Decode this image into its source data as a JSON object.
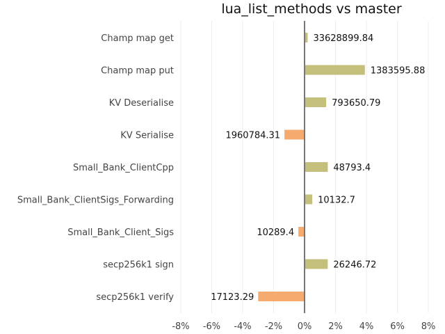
{
  "chart_data": {
    "type": "bar",
    "orientation": "horizontal",
    "title": "lua_list_methods vs master",
    "xlabel": "",
    "ylabel": "",
    "xlim": [
      -8,
      8
    ],
    "x_tick_values": [
      -8,
      -6,
      -4,
      -2,
      0,
      2,
      4,
      6,
      8
    ],
    "x_tick_labels": [
      "-8%",
      "-6%",
      "-4%",
      "-2%",
      "0%",
      "2%",
      "4%",
      "6%",
      "8%"
    ],
    "grid": true,
    "legend": "none",
    "colors": {
      "positive": "#c5bf7c",
      "negative": "#f5ab6f",
      "zero_line": "#777777"
    },
    "categories": [
      "Champ map get",
      "Champ map put",
      "KV Deserialise",
      "KV Serialise",
      "Small_Bank_ClientCpp",
      "Small_Bank_ClientSigs_Forwarding",
      "Small_Bank_Client_Sigs",
      "secp256k1 sign",
      "secp256k1 verify"
    ],
    "values": [
      0.2,
      3.9,
      1.4,
      -1.3,
      1.5,
      0.5,
      -0.4,
      1.5,
      -3.0
    ],
    "data_labels": [
      "33628899.84",
      "1383595.88",
      "793650.79",
      "1960784.31",
      "48793.4",
      "10132.7",
      "10289.4",
      "26246.72",
      "17123.29"
    ]
  }
}
